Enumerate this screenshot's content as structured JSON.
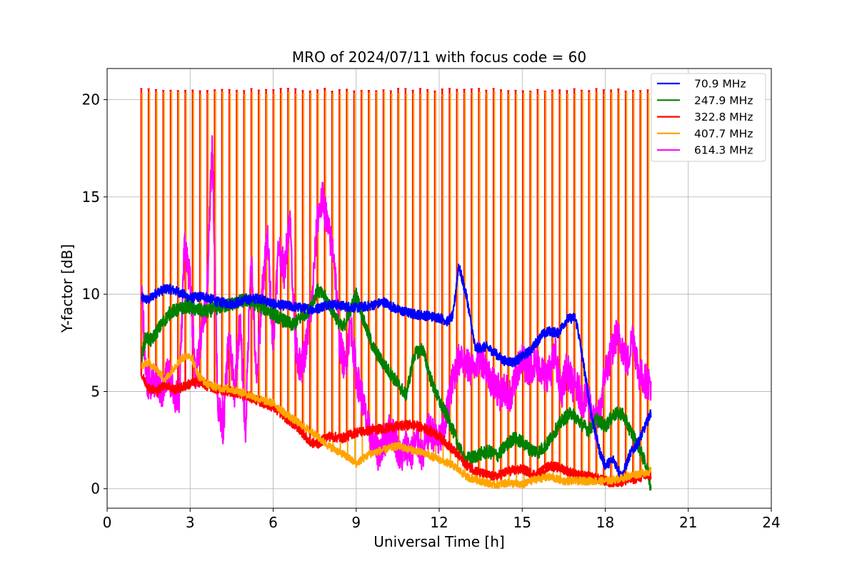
{
  "chart_data": {
    "type": "line",
    "title": "MRO of 2024/07/11 with focus code = 60",
    "xlabel": "Universal Time [h]",
    "ylabel": "Y-factor [dB]",
    "xlim": [
      0,
      24
    ],
    "ylim": [
      -1,
      21.6
    ],
    "xticks": [
      0,
      3,
      6,
      9,
      12,
      15,
      18,
      21,
      24
    ],
    "xtick_labels": [
      "0",
      "3",
      "6",
      "9",
      "12",
      "15",
      "18",
      "21",
      "24"
    ],
    "yticks": [
      0,
      5,
      10,
      15,
      20
    ],
    "ytick_labels": [
      "0",
      "5",
      "10",
      "15",
      "20"
    ],
    "grid": true,
    "legend_position": "top-right",
    "calibration_spikes": {
      "start_h": 1.25,
      "end_h": 19.55,
      "count": 70,
      "peak_db": {
        "322.8 MHz": 20.5,
        "407.7 MHz": 20.3,
        "614.3 MHz": 11.3
      }
    },
    "series": [
      {
        "name": "70.9 MHz",
        "color": "#0000ff",
        "x": [
          1.25,
          1.5,
          1.8,
          2.2,
          2.6,
          3.0,
          3.5,
          4.0,
          4.5,
          5.0,
          5.5,
          6.0,
          6.5,
          7.0,
          7.5,
          8.0,
          8.5,
          9.0,
          9.5,
          10.0,
          10.5,
          11.0,
          11.5,
          12.0,
          12.3,
          12.5,
          12.7,
          13.0,
          13.3,
          13.7,
          14.0,
          14.3,
          14.7,
          15.0,
          15.3,
          15.7,
          16.0,
          16.3,
          16.6,
          16.9,
          17.0,
          17.2,
          17.5,
          17.8,
          18.0,
          18.3,
          18.6,
          18.9,
          19.2,
          19.5,
          19.65
        ],
        "y": [
          9.8,
          9.7,
          10.1,
          10.3,
          10.1,
          9.8,
          9.9,
          9.6,
          9.5,
          9.7,
          9.8,
          9.5,
          9.4,
          9.3,
          9.2,
          9.5,
          9.4,
          9.3,
          9.4,
          9.6,
          9.2,
          9.0,
          8.9,
          8.8,
          8.6,
          8.9,
          11.5,
          9.8,
          7.2,
          7.3,
          7.0,
          6.6,
          6.5,
          6.8,
          7.1,
          7.9,
          8.1,
          8.0,
          8.7,
          8.8,
          8.3,
          6.5,
          3.8,
          1.9,
          1.2,
          1.5,
          0.6,
          1.8,
          2.4,
          3.4,
          3.9
        ]
      },
      {
        "name": "247.9 MHz",
        "color": "#008000",
        "x": [
          1.25,
          1.4,
          1.6,
          1.8,
          2.0,
          2.3,
          2.6,
          2.9,
          3.2,
          3.6,
          4.0,
          4.5,
          5.0,
          5.5,
          6.0,
          6.3,
          6.7,
          7.0,
          7.3,
          7.6,
          7.9,
          8.2,
          8.5,
          8.8,
          9.0,
          9.3,
          9.6,
          9.9,
          10.2,
          10.5,
          10.8,
          11.1,
          11.4,
          11.7,
          12.0,
          12.3,
          12.6,
          12.9,
          13.2,
          13.5,
          13.8,
          14.1,
          14.4,
          14.7,
          15.0,
          15.3,
          15.6,
          15.9,
          16.2,
          16.5,
          16.8,
          17.1,
          17.4,
          17.7,
          18.0,
          18.3,
          18.6,
          18.9,
          19.2,
          19.5,
          19.65
        ],
        "y": [
          6.8,
          7.8,
          7.6,
          8.1,
          8.5,
          9.1,
          9.2,
          9.4,
          9.2,
          9.1,
          9.3,
          9.5,
          9.7,
          9.4,
          9.0,
          8.7,
          8.4,
          8.8,
          9.2,
          10.2,
          9.8,
          9.0,
          8.2,
          9.2,
          10.0,
          8.5,
          7.3,
          6.6,
          6.0,
          5.4,
          4.8,
          6.9,
          7.2,
          5.6,
          4.5,
          3.7,
          2.6,
          1.5,
          1.6,
          1.8,
          1.9,
          1.7,
          2.2,
          2.6,
          2.4,
          2.0,
          1.9,
          2.3,
          3.0,
          3.6,
          3.9,
          3.4,
          3.0,
          3.6,
          3.2,
          3.8,
          3.9,
          3.0,
          2.2,
          1.1,
          0.1
        ]
      },
      {
        "name": "322.8 MHz",
        "color": "#ff0000",
        "x": [
          1.25,
          1.5,
          1.8,
          2.1,
          2.4,
          2.7,
          3.0,
          3.3,
          3.6,
          4.0,
          4.5,
          5.0,
          5.5,
          6.0,
          6.5,
          7.0,
          7.3,
          7.6,
          8.0,
          8.5,
          9.0,
          9.5,
          10.0,
          10.5,
          11.0,
          11.5,
          12.0,
          12.5,
          13.0,
          13.5,
          14.0,
          14.5,
          15.0,
          15.5,
          16.0,
          16.5,
          17.0,
          17.5,
          18.0,
          18.3,
          18.7,
          19.0,
          19.3,
          19.65
        ],
        "y": [
          5.8,
          5.2,
          5.0,
          5.4,
          5.1,
          5.2,
          5.4,
          5.5,
          5.3,
          5.1,
          5.0,
          4.8,
          4.5,
          4.2,
          3.6,
          3.0,
          2.4,
          2.3,
          2.7,
          2.6,
          2.9,
          3.0,
          3.1,
          3.2,
          3.3,
          3.1,
          2.7,
          2.0,
          1.2,
          0.8,
          0.6,
          0.9,
          1.0,
          0.7,
          1.2,
          1.0,
          0.7,
          0.6,
          0.4,
          0.3,
          0.4,
          0.5,
          0.6,
          0.7
        ]
      },
      {
        "name": "407.7 MHz",
        "color": "#ffa500",
        "x": [
          1.25,
          1.5,
          1.8,
          2.1,
          2.4,
          2.7,
          3.0,
          3.3,
          3.6,
          4.0,
          4.5,
          5.0,
          5.5,
          6.0,
          6.5,
          7.0,
          7.5,
          8.0,
          8.5,
          9.0,
          9.5,
          10.0,
          10.5,
          11.0,
          11.5,
          12.0,
          12.5,
          13.0,
          13.5,
          14.0,
          14.5,
          15.0,
          15.5,
          16.0,
          16.5,
          17.0,
          17.5,
          18.0,
          18.5,
          19.0,
          19.3,
          19.65
        ],
        "y": [
          6.3,
          6.5,
          6.1,
          5.6,
          6.2,
          6.7,
          6.9,
          5.8,
          5.4,
          5.2,
          5.1,
          4.9,
          4.6,
          4.4,
          3.8,
          3.3,
          2.8,
          2.2,
          1.8,
          1.3,
          1.8,
          2.0,
          2.2,
          2.0,
          1.8,
          1.5,
          1.2,
          0.6,
          0.4,
          0.2,
          0.3,
          0.2,
          0.5,
          0.6,
          0.4,
          0.4,
          0.4,
          0.4,
          0.5,
          0.7,
          0.8,
          0.9
        ]
      },
      {
        "name": "614.3 MHz",
        "color": "#ff00ff",
        "x": [
          1.25,
          1.4,
          1.6,
          1.8,
          2.0,
          2.2,
          2.4,
          2.6,
          2.8,
          3.0,
          3.2,
          3.4,
          3.6,
          3.8,
          4.0,
          4.2,
          4.4,
          4.6,
          4.8,
          5.0,
          5.2,
          5.4,
          5.6,
          5.8,
          6.0,
          6.2,
          6.4,
          6.6,
          6.8,
          7.0,
          7.2,
          7.4,
          7.6,
          7.8,
          8.0,
          8.2,
          8.4,
          8.6,
          8.8,
          9.0,
          9.2,
          9.4,
          9.6,
          9.8,
          10.0,
          10.2,
          10.4,
          10.6,
          10.8,
          11.0,
          11.2,
          11.4,
          11.6,
          11.8,
          12.0,
          12.2,
          12.4,
          12.6,
          12.8,
          13.0,
          13.2,
          13.4,
          13.6,
          13.8,
          14.0,
          14.2,
          14.4,
          14.6,
          14.8,
          15.0,
          15.2,
          15.4,
          15.6,
          15.8,
          16.0,
          16.2,
          16.4,
          16.6,
          16.8,
          17.0,
          17.2,
          17.4,
          17.6,
          17.8,
          18.0,
          18.2,
          18.4,
          18.6,
          18.8,
          19.0,
          19.2,
          19.4,
          19.65
        ],
        "y": [
          10.2,
          5.8,
          5.2,
          5.6,
          4.8,
          6.1,
          5.0,
          4.4,
          12.8,
          10.5,
          5.6,
          8.1,
          9.6,
          17.8,
          4.2,
          3.1,
          8.0,
          4.9,
          8.7,
          2.8,
          12.2,
          5.2,
          10.2,
          12.9,
          7.3,
          12.6,
          11.1,
          14.1,
          7.5,
          6.0,
          7.4,
          9.6,
          13.9,
          15.0,
          13.2,
          12.0,
          7.5,
          6.2,
          8.6,
          5.8,
          4.8,
          3.2,
          2.5,
          1.8,
          2.4,
          3.0,
          2.7,
          1.5,
          2.2,
          1.8,
          2.5,
          1.6,
          3.0,
          2.8,
          2.4,
          3.2,
          5.0,
          6.2,
          6.9,
          6.3,
          6.1,
          6.7,
          6.6,
          5.8,
          5.4,
          4.9,
          5.1,
          4.6,
          6.0,
          6.6,
          6.2,
          6.4,
          6.4,
          5.8,
          6.0,
          6.9,
          4.8,
          6.2,
          5.4,
          5.1,
          4.5,
          4.7,
          3.3,
          3.8,
          6.1,
          6.8,
          7.9,
          7.4,
          6.4,
          8.0,
          6.0,
          5.6,
          5.4
        ]
      }
    ]
  }
}
